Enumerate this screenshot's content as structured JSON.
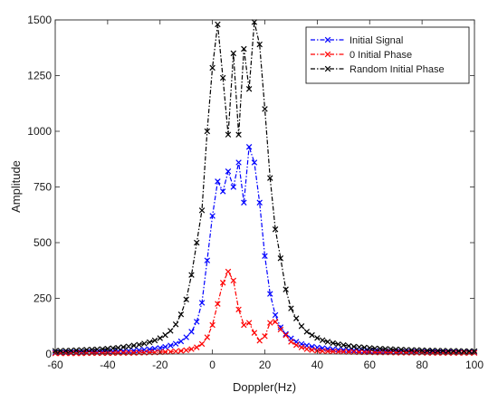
{
  "chart_data": {
    "type": "line",
    "xlabel": "Doppler(Hz)",
    "ylabel": "Amplitude",
    "xlim": [
      -60,
      100
    ],
    "ylim": [
      0,
      1500
    ],
    "xticks": [
      -60,
      -40,
      -20,
      0,
      20,
      40,
      60,
      80,
      100
    ],
    "yticks": [
      0,
      250,
      500,
      750,
      1000,
      1250,
      1500
    ],
    "grid": false,
    "legend_position": "top-right",
    "x": [
      -60,
      -58,
      -56,
      -54,
      -52,
      -50,
      -48,
      -46,
      -44,
      -42,
      -40,
      -38,
      -36,
      -34,
      -32,
      -30,
      -28,
      -26,
      -24,
      -22,
      -20,
      -18,
      -16,
      -14,
      -12,
      -10,
      -8,
      -6,
      -4,
      -2,
      0,
      2,
      4,
      6,
      8,
      10,
      12,
      14,
      16,
      18,
      20,
      22,
      24,
      26,
      28,
      30,
      32,
      34,
      36,
      38,
      40,
      42,
      44,
      46,
      48,
      50,
      52,
      54,
      56,
      58,
      60,
      62,
      64,
      66,
      68,
      70,
      72,
      74,
      76,
      78,
      80,
      82,
      84,
      86,
      88,
      90,
      92,
      94,
      96,
      98,
      100
    ],
    "series": [
      {
        "name": "Initial Signal",
        "color": "#0000ff",
        "values": [
          6,
          6,
          7,
          7,
          7,
          8,
          8,
          9,
          9,
          10,
          10,
          11,
          12,
          13,
          14,
          15,
          17,
          19,
          21,
          24,
          27,
          32,
          38,
          46,
          57,
          75,
          100,
          145,
          230,
          420,
          620,
          775,
          730,
          820,
          750,
          860,
          680,
          930,
          860,
          680,
          440,
          270,
          175,
          120,
          90,
          70,
          55,
          45,
          38,
          33,
          29,
          26,
          23,
          21,
          19,
          18,
          17,
          16,
          15,
          14,
          13,
          13,
          12,
          12,
          11,
          11,
          10,
          10,
          10,
          9,
          9,
          9,
          9,
          8,
          8,
          8,
          8,
          7,
          7,
          7,
          7
        ]
      },
      {
        "name": "0 Initial Phase",
        "color": "#ff0000",
        "values": [
          3,
          3,
          3,
          3,
          3,
          3,
          4,
          4,
          4,
          4,
          4,
          4,
          5,
          5,
          5,
          5,
          6,
          6,
          7,
          7,
          8,
          9,
          10,
          12,
          14,
          17,
          22,
          30,
          45,
          75,
          130,
          225,
          320,
          370,
          330,
          200,
          130,
          140,
          95,
          60,
          80,
          140,
          145,
          110,
          85,
          55,
          40,
          30,
          22,
          18,
          15,
          13,
          12,
          11,
          10,
          10,
          9,
          9,
          8,
          8,
          8,
          7,
          7,
          7,
          7,
          6,
          6,
          6,
          6,
          6,
          6,
          5,
          5,
          5,
          5,
          5,
          5,
          5,
          5,
          5,
          5
        ]
      },
      {
        "name": "Random Initial Phase",
        "color": "#000000",
        "values": [
          14,
          15,
          15,
          16,
          17,
          18,
          19,
          20,
          21,
          22,
          24,
          26,
          28,
          31,
          34,
          38,
          42,
          47,
          53,
          61,
          71,
          85,
          104,
          133,
          178,
          245,
          355,
          500,
          645,
          1000,
          1285,
          1480,
          1240,
          985,
          1350,
          985,
          1370,
          1190,
          1490,
          1390,
          1100,
          790,
          560,
          430,
          290,
          205,
          160,
          125,
          100,
          85,
          72,
          62,
          55,
          49,
          44,
          40,
          36,
          33,
          31,
          29,
          27,
          25,
          24,
          23,
          22,
          21,
          20,
          19,
          18,
          18,
          17,
          16,
          16,
          15,
          15,
          14,
          14,
          14,
          13,
          13,
          13
        ]
      }
    ]
  }
}
